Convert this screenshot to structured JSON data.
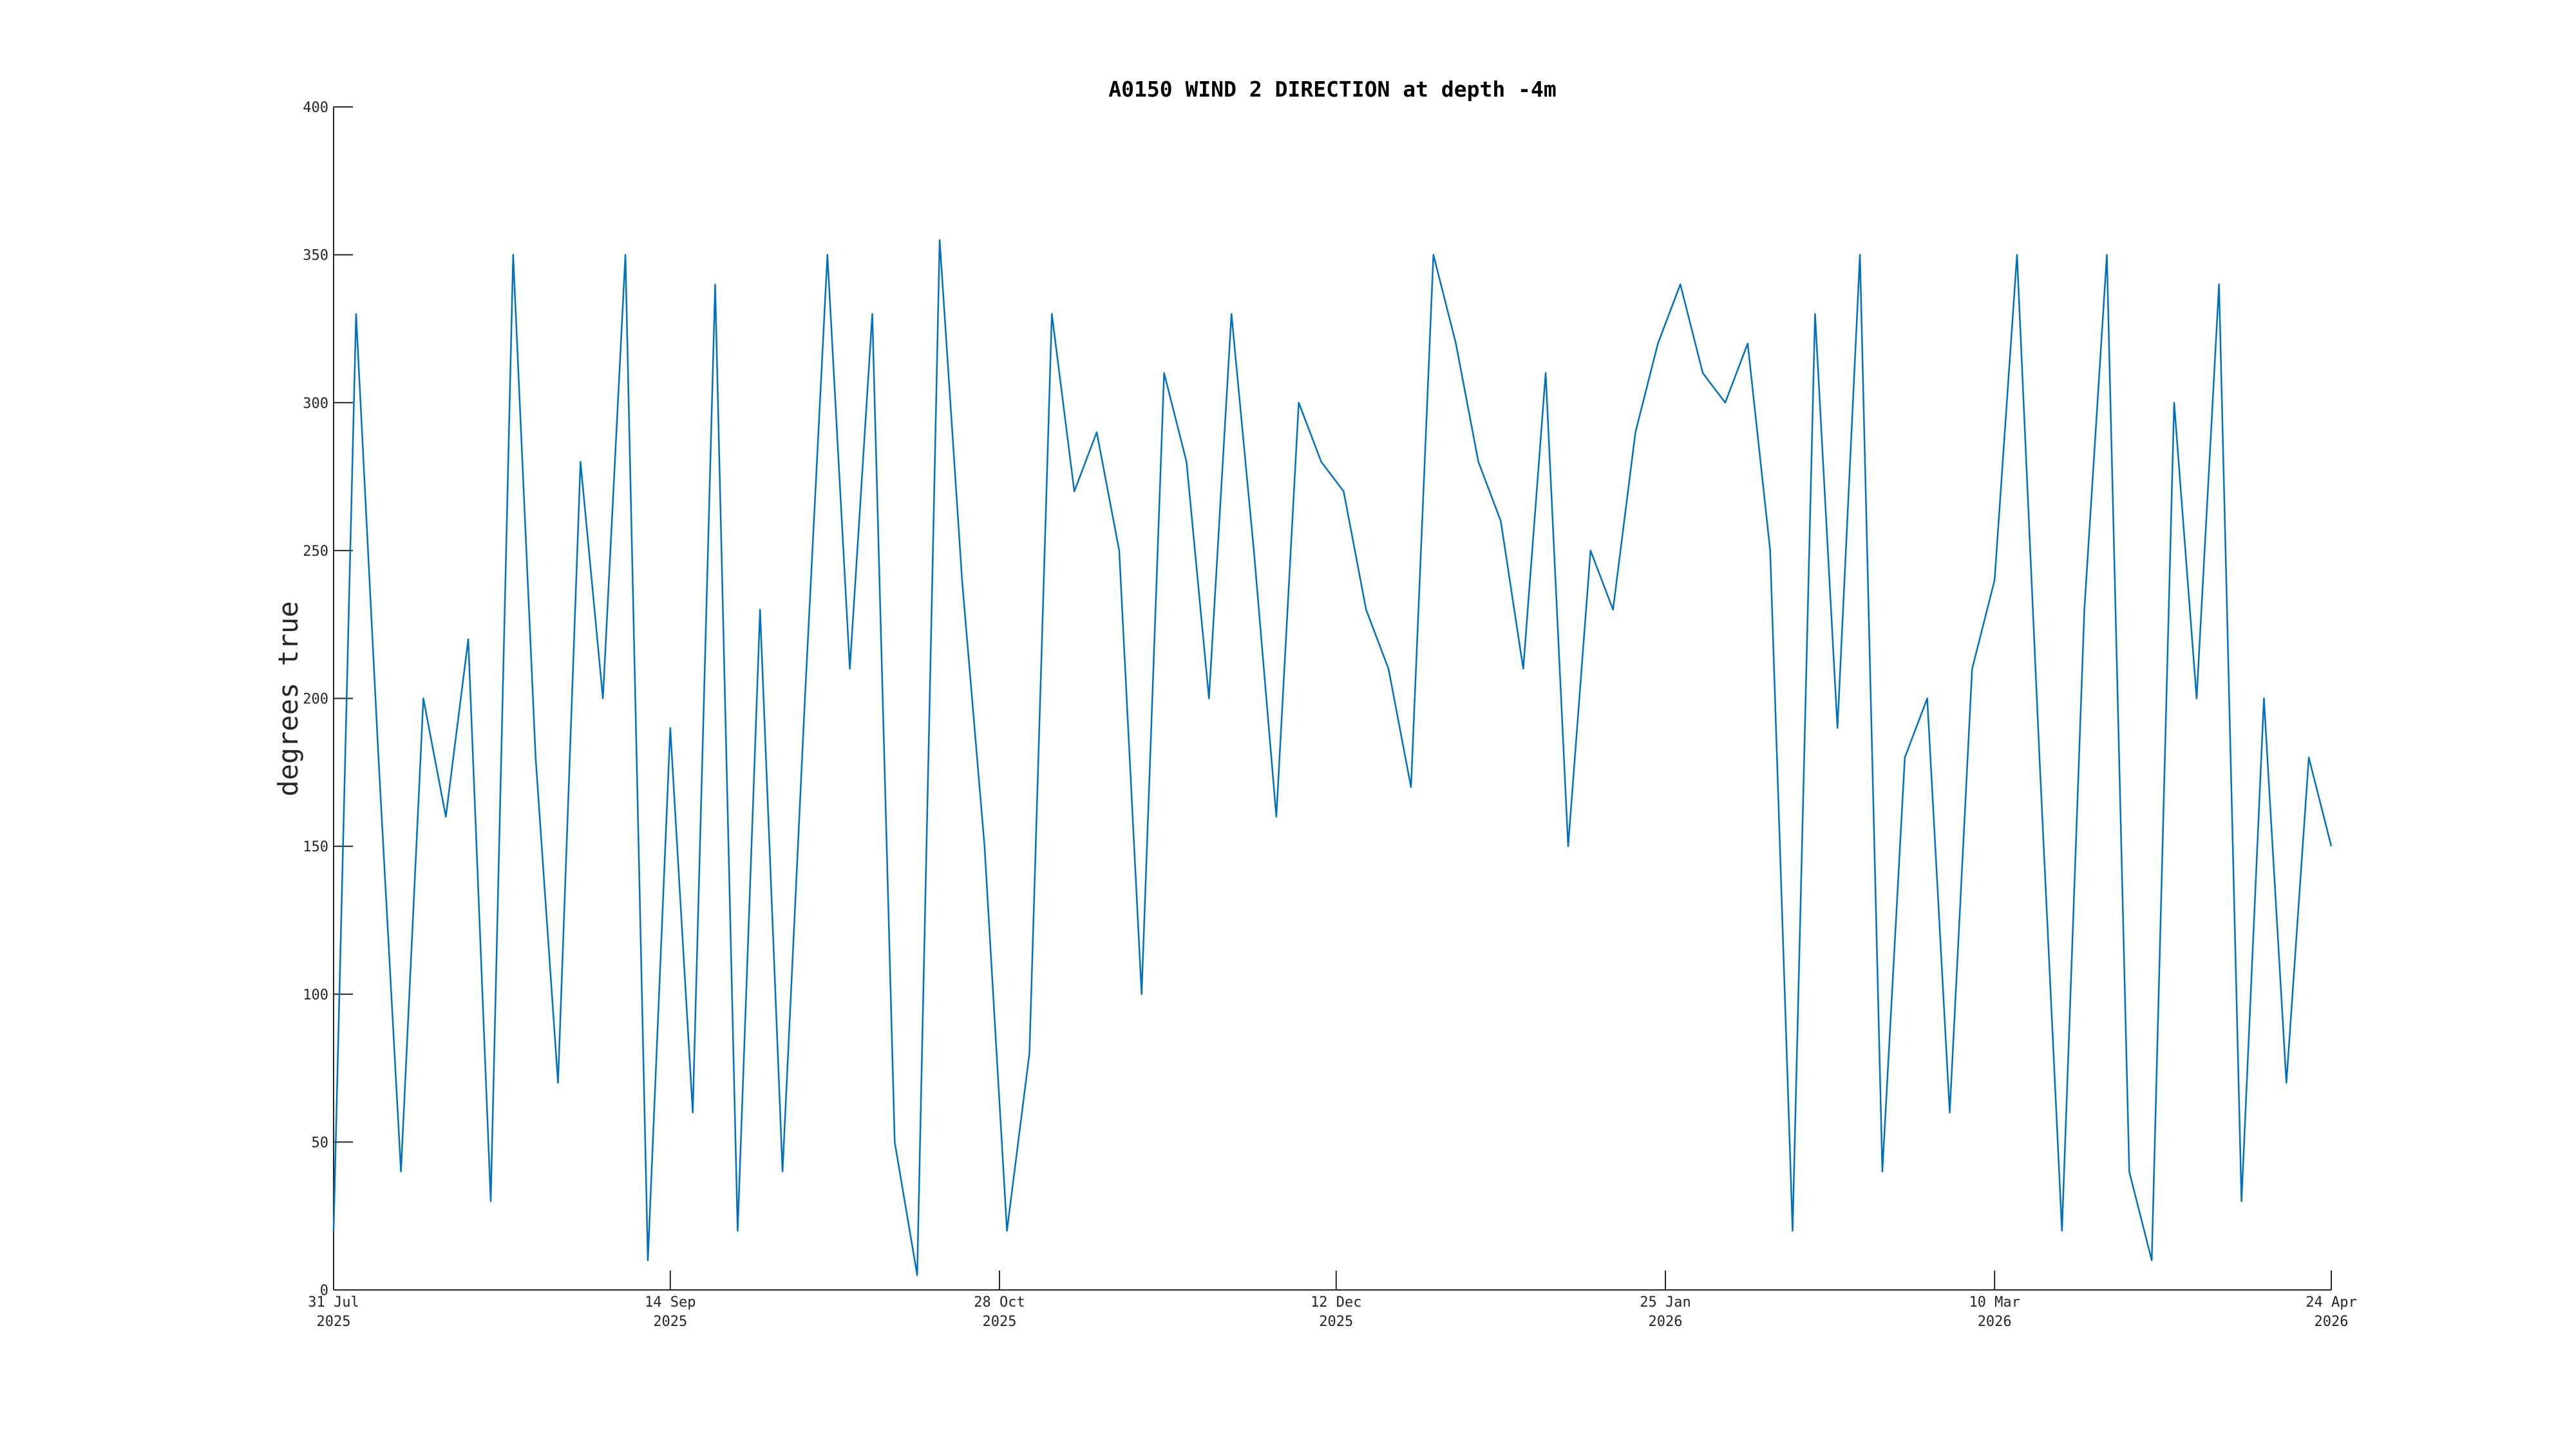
{
  "chart_data": {
    "type": "line",
    "title": "A0150 WIND 2 DIRECTION at depth -4m",
    "y_label": "degrees true",
    "x": [
      "2025-07-31",
      "2025-08-03",
      "2025-08-06",
      "2025-08-09",
      "2025-08-12",
      "2025-08-15",
      "2025-08-18",
      "2025-08-21",
      "2025-08-24",
      "2025-08-27",
      "2025-08-30",
      "2025-09-02",
      "2025-09-05",
      "2025-09-08",
      "2025-09-11",
      "2025-09-14",
      "2025-09-17",
      "2025-09-20",
      "2025-09-23",
      "2025-09-26",
      "2025-09-29",
      "2025-10-02",
      "2025-10-05",
      "2025-10-08",
      "2025-10-11",
      "2025-10-14",
      "2025-10-17",
      "2025-10-20",
      "2025-10-23",
      "2025-10-26",
      "2025-10-29",
      "2025-11-01",
      "2025-11-04",
      "2025-11-07",
      "2025-11-10",
      "2025-11-13",
      "2025-11-16",
      "2025-11-19",
      "2025-11-22",
      "2025-11-25",
      "2025-11-28",
      "2025-12-01",
      "2025-12-04",
      "2025-12-07",
      "2025-12-10",
      "2025-12-13",
      "2025-12-16",
      "2025-12-19",
      "2025-12-22",
      "2025-12-25",
      "2025-12-28",
      "2025-12-31",
      "2026-01-03",
      "2026-01-06",
      "2026-01-09",
      "2026-01-12",
      "2026-01-15",
      "2026-01-18",
      "2026-01-21",
      "2026-01-24",
      "2026-01-27",
      "2026-01-30",
      "2026-02-02",
      "2026-02-05",
      "2026-02-08",
      "2026-02-11",
      "2026-02-14",
      "2026-02-17",
      "2026-02-20",
      "2026-02-23",
      "2026-02-26",
      "2026-03-01",
      "2026-03-04",
      "2026-03-07",
      "2026-03-10",
      "2026-03-13",
      "2026-03-16",
      "2026-03-19",
      "2026-03-22",
      "2026-03-25",
      "2026-03-28",
      "2026-03-31",
      "2026-04-03",
      "2026-04-06",
      "2026-04-09",
      "2026-04-12",
      "2026-04-15",
      "2026-04-18",
      "2026-04-21",
      "2026-04-24"
    ],
    "series": [
      {
        "color": "#0072bd",
        "values": [
          20,
          330,
          180,
          40,
          200,
          160,
          220,
          30,
          350,
          180,
          70,
          280,
          200,
          350,
          10,
          190,
          60,
          340,
          20,
          230,
          40,
          200,
          350,
          210,
          330,
          50,
          5,
          355,
          240,
          150,
          20,
          80,
          330,
          270,
          290,
          250,
          100,
          310,
          280,
          200,
          330,
          250,
          160,
          300,
          280,
          270,
          230,
          210,
          170,
          350,
          320,
          280,
          260,
          210,
          310,
          150,
          250,
          230,
          290,
          320,
          340,
          310,
          300,
          320,
          250,
          20,
          330,
          190,
          350,
          40,
          180,
          200,
          60,
          210,
          240,
          350,
          180,
          20,
          230,
          350,
          40,
          10,
          300,
          200,
          340,
          30,
          200,
          70,
          180,
          150
        ]
      }
    ],
    "xlim": [
      "2025-07-31",
      "2026-04-24"
    ],
    "xticks": [
      {
        "value": "2025-07-31",
        "label": "31 Jul\n2025"
      },
      {
        "value": "2025-09-14",
        "label": "14 Sep\n2025"
      },
      {
        "value": "2025-10-28",
        "label": "28 Oct\n2025"
      },
      {
        "value": "2025-12-12",
        "label": "12 Dec\n2025"
      },
      {
        "value": "2026-01-25",
        "label": "25 Jan\n2026"
      },
      {
        "value": "2026-03-10",
        "label": "10 Mar\n2026"
      },
      {
        "value": "2026-04-24",
        "label": "24 Apr\n2026"
      }
    ],
    "ylim": [
      0,
      400
    ],
    "yticks": [
      0,
      50,
      100,
      150,
      200,
      250,
      300,
      350,
      400
    ]
  }
}
